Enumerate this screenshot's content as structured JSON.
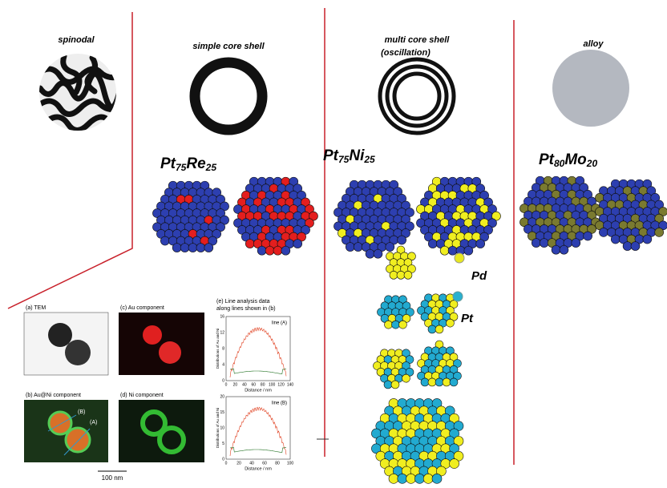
{
  "columns": [
    {
      "title": [
        "spinodal"
      ]
    },
    {
      "title": [
        "simple core shell"
      ]
    },
    {
      "title": [
        "multi core shell",
        "(oscillation)"
      ]
    },
    {
      "title": [
        "alloy"
      ]
    }
  ],
  "formulas": [
    {
      "el1": "Pt",
      "n1": "75",
      "el2": "Re",
      "n2": "25"
    },
    {
      "el1": "Pt",
      "n1": "75",
      "el2": "Ni",
      "n2": "25"
    },
    {
      "el1": "Pt",
      "n1": "80",
      "el2": "Mo",
      "n2": "20"
    }
  ],
  "legend": {
    "pd": "Pd",
    "pt": "Pt"
  },
  "panels": {
    "a": "(a) TEM",
    "c": "(c) Au component",
    "e": [
      "(e) Line analysis data",
      "along lines shown in (b)"
    ],
    "b": "(b) Au@Ni component",
    "d": "(d) Ni component",
    "markers": [
      "(B)",
      "(A)"
    ]
  },
  "plots": [
    {
      "line": "line (A)",
      "xlabel": "Distance / nm",
      "ylabel": "Distributions of Au and Ni",
      "xticks": [
        0,
        20,
        40,
        60,
        80,
        100,
        120,
        140
      ],
      "yticks": [
        0,
        4,
        8,
        12,
        16
      ]
    },
    {
      "line": "line (B)",
      "xlabel": "Distance / nm",
      "ylabel": "Distributions of Au and Ni",
      "xticks": [
        0,
        20,
        40,
        60,
        80,
        100
      ],
      "yticks": [
        0,
        5,
        10,
        15,
        20
      ]
    }
  ],
  "scale_bar": "100 nm"
}
